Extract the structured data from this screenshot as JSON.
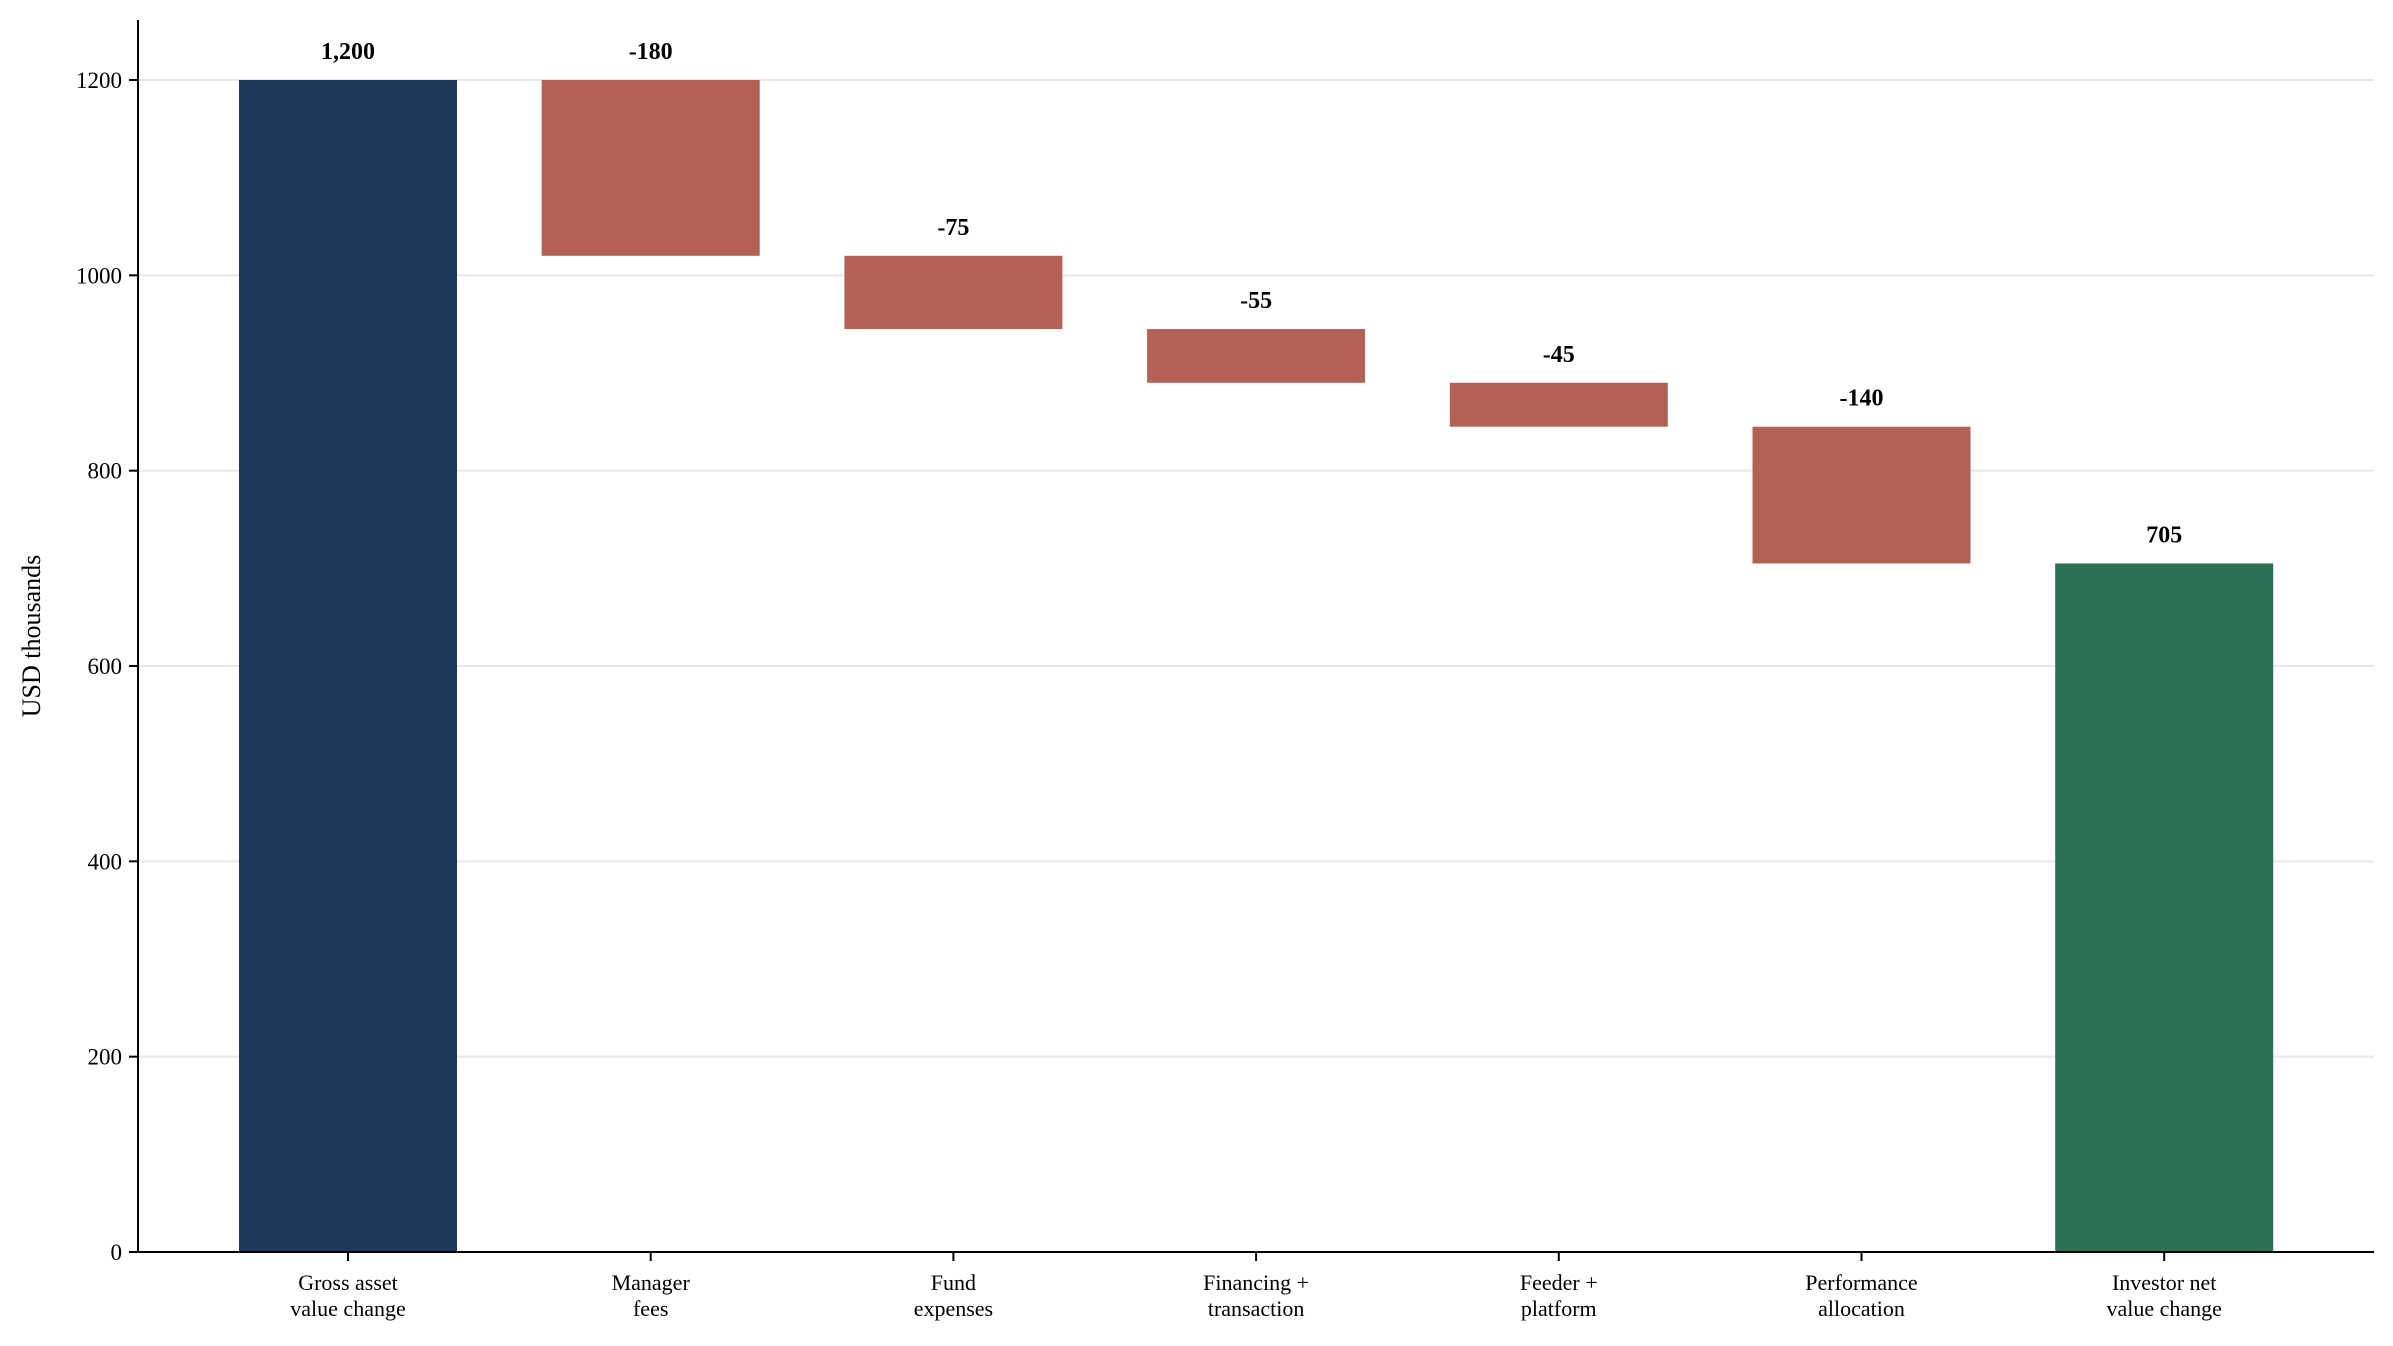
{
  "chart_data": {
    "type": "bar",
    "subtype": "waterfall",
    "title": "",
    "xlabel": "",
    "ylabel": "USD thousands",
    "ylim": [
      0,
      1260
    ],
    "yticks": [
      0,
      200,
      400,
      600,
      800,
      1000,
      1200
    ],
    "ytick_labels": [
      "0",
      "200",
      "400",
      "600",
      "800",
      "1000",
      "1200"
    ],
    "grid": "horizontal",
    "legend": "none",
    "categories": [
      [
        "Gross asset",
        "value change"
      ],
      [
        "Manager",
        "fees"
      ],
      [
        "Fund",
        "expenses"
      ],
      [
        "Financing +",
        "transaction"
      ],
      [
        "Feeder +",
        "platform"
      ],
      [
        "Performance",
        "allocation"
      ],
      [
        "Investor net",
        "value change"
      ]
    ],
    "values": [
      1200,
      -180,
      -75,
      -55,
      -45,
      -140,
      705
    ],
    "kinds": [
      "total",
      "delta",
      "delta",
      "delta",
      "delta",
      "delta",
      "total"
    ],
    "data_labels": [
      "1,200",
      "-180",
      "-75",
      "-55",
      "-45",
      "-140",
      "705"
    ],
    "colors": {
      "start": "#1b3a5c",
      "negative": "#b46155",
      "end": "#2e7053",
      "grid": "#e8e8e8",
      "axis": "#000000"
    }
  }
}
